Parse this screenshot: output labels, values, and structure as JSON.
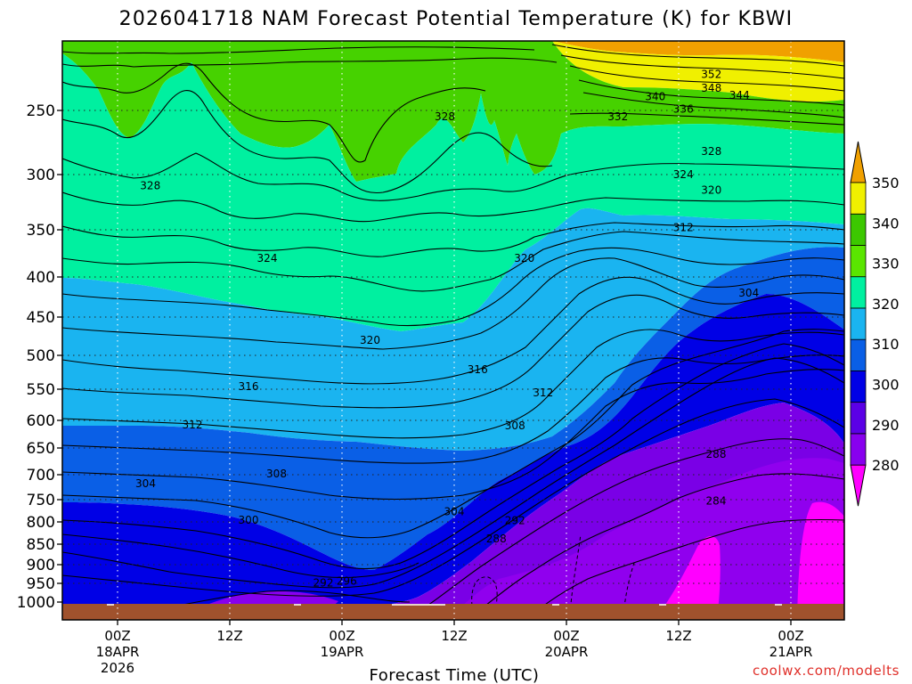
{
  "chart_data": {
    "type": "heatmap",
    "title": "2026041718 NAM Forecast Potential Temperature (K) for KBWI",
    "xlabel": "Forecast Time (UTC)",
    "ylabel": "",
    "credit": "coolwx.com/modelts",
    "y_ticks": [
      250,
      300,
      350,
      400,
      450,
      500,
      550,
      600,
      650,
      700,
      750,
      800,
      850,
      900,
      950,
      1000
    ],
    "y_tick_labels": [
      "250",
      "300",
      "350",
      "400",
      "450",
      "500",
      "550",
      "600",
      "650",
      "700",
      "750",
      "800",
      "850",
      "900",
      "950",
      "1000"
    ],
    "ylim": [
      1000,
      200
    ],
    "x_ticks": [
      {
        "hour": 6,
        "lines": [
          "00Z",
          "18APR",
          "2026"
        ]
      },
      {
        "hour": 18,
        "lines": [
          "12Z"
        ]
      },
      {
        "hour": 30,
        "lines": [
          "00Z",
          "19APR"
        ]
      },
      {
        "hour": 42,
        "lines": [
          "12Z"
        ]
      },
      {
        "hour": 54,
        "lines": [
          "00Z",
          "20APR"
        ]
      },
      {
        "hour": 66,
        "lines": [
          "12Z"
        ]
      },
      {
        "hour": 78,
        "lines": [
          "00Z",
          "21APR"
        ]
      }
    ],
    "xlim": [
      0,
      84
    ],
    "colorbar": {
      "levels": [
        280,
        290,
        300,
        310,
        320,
        330,
        340,
        350
      ],
      "labels": [
        "280",
        "290",
        "300",
        "310",
        "320",
        "330",
        "340",
        "350"
      ],
      "colors": [
        "#ff00ff",
        "#8800ee",
        "#5b00e6",
        "#0000e6",
        "#0a5fe6",
        "#1ab4f0",
        "#00f0a0",
        "#5ae600",
        "#3cc800",
        "#f0f000",
        "#f0a000"
      ]
    },
    "contour_interval": 4,
    "contour_labels": [
      {
        "value": 352,
        "hour": 69.5,
        "p": 224
      },
      {
        "value": 348,
        "hour": 69.5,
        "p": 234
      },
      {
        "value": 344,
        "hour": 72.5,
        "p": 239
      },
      {
        "value": 340,
        "hour": 63.5,
        "p": 240
      },
      {
        "value": 336,
        "hour": 66.5,
        "p": 249
      },
      {
        "value": 332,
        "hour": 59.5,
        "p": 255
      },
      {
        "value": 328,
        "hour": 41,
        "p": 255
      },
      {
        "value": 328,
        "hour": 9.5,
        "p": 310
      },
      {
        "value": 328,
        "hour": 69.5,
        "p": 282
      },
      {
        "value": 324,
        "hour": 66.5,
        "p": 300
      },
      {
        "value": 324,
        "hour": 22,
        "p": 380
      },
      {
        "value": 320,
        "hour": 69.5,
        "p": 314
      },
      {
        "value": 320,
        "hour": 49.5,
        "p": 380
      },
      {
        "value": 320,
        "hour": 33,
        "p": 480
      },
      {
        "value": 316,
        "hour": 20,
        "p": 546
      },
      {
        "value": 316,
        "hour": 44.5,
        "p": 521
      },
      {
        "value": 312,
        "hour": 66.5,
        "p": 348
      },
      {
        "value": 312,
        "hour": 51.5,
        "p": 556
      },
      {
        "value": 312,
        "hour": 14,
        "p": 608
      },
      {
        "value": 308,
        "hour": 48.5,
        "p": 610
      },
      {
        "value": 308,
        "hour": 23,
        "p": 698
      },
      {
        "value": 304,
        "hour": 73.5,
        "p": 420
      },
      {
        "value": 304,
        "hour": 9,
        "p": 718
      },
      {
        "value": 304,
        "hour": 42,
        "p": 777
      },
      {
        "value": 300,
        "hour": 20,
        "p": 796
      },
      {
        "value": 296,
        "hour": 30.5,
        "p": 944
      },
      {
        "value": 292,
        "hour": 28,
        "p": 949
      },
      {
        "value": 292,
        "hour": 48.5,
        "p": 797
      },
      {
        "value": 288,
        "hour": 46.5,
        "p": 838
      },
      {
        "value": 288,
        "hour": 70,
        "p": 662
      },
      {
        "value": 284,
        "hour": 70,
        "p": 753
      }
    ]
  }
}
